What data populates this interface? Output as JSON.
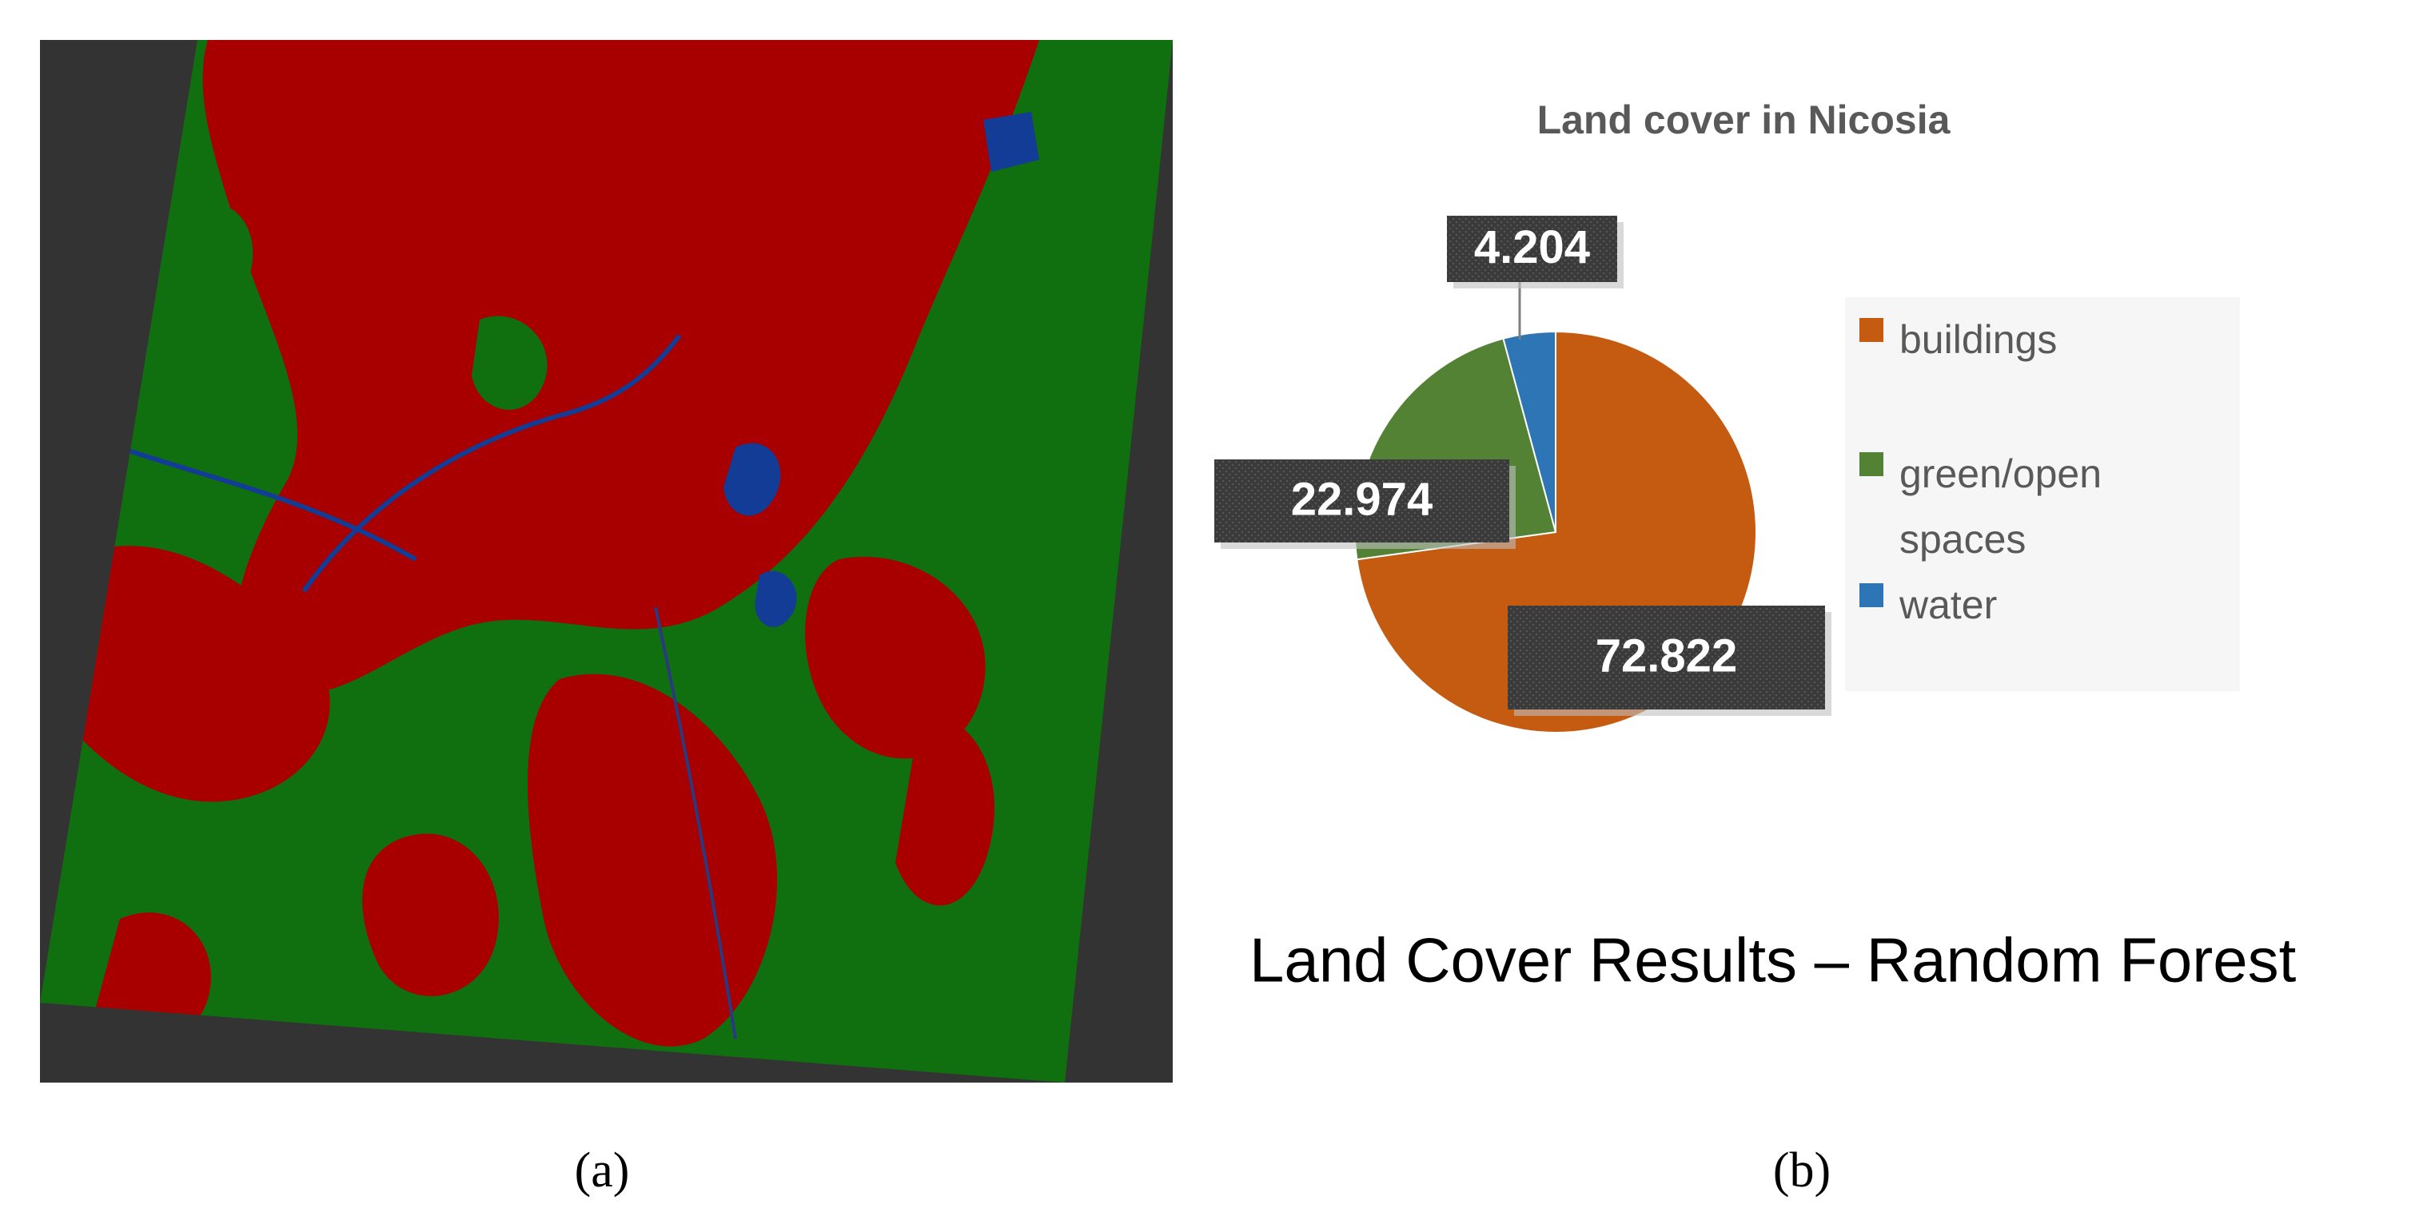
{
  "panel_labels": [
    "(a)",
    "(b)"
  ],
  "caption": "Land Cover Results – Random Forest",
  "chart_data": {
    "type": "pie",
    "title": "Land cover in Nicosia",
    "categories": [
      "buildings",
      "green/open spaces",
      "water"
    ],
    "values": [
      72.822,
      22.974,
      4.204
    ],
    "colors": [
      "#c55a11",
      "#548235",
      "#2e75b6"
    ],
    "legend": "right"
  }
}
